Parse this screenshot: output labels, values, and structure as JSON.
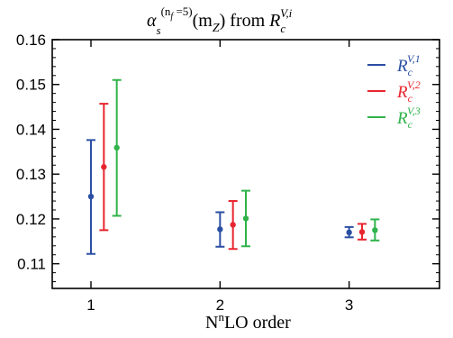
{
  "chart_data": {
    "type": "scatter",
    "title": {
      "symbol": "α",
      "sub": "s",
      "sup": "(n",
      "sup_sub": "f",
      "sup_tail": " =5)",
      "arg": "(m",
      "arg_sub": "Z",
      "arg_tail": ") from ",
      "R": "R",
      "R_sub": "c",
      "R_sup": "V,i"
    },
    "xlabel": {
      "N": "N",
      "n": "n",
      "rest": "LO order"
    },
    "ylabel": "",
    "x_ticks": [
      "1",
      "2",
      "3"
    ],
    "y_ticks": [
      "0.11",
      "0.12",
      "0.13",
      "0.14",
      "0.15",
      "0.16"
    ],
    "xlim": [
      0.7,
      3.7
    ],
    "ylim": [
      0.1045,
      0.16
    ],
    "grid": false,
    "legend_position": "top-right",
    "series": [
      {
        "name": "R_c^{V,1}",
        "legend": {
          "R": "R",
          "sub": "c",
          "sup": "V,1"
        },
        "color": "#2a4fa3",
        "offset": 0.0,
        "points": [
          {
            "x": 1,
            "y": 0.125,
            "ylow": 0.1122,
            "yhigh": 0.1376
          },
          {
            "x": 2,
            "y": 0.1177,
            "ylow": 0.1138,
            "yhigh": 0.1215
          },
          {
            "x": 3,
            "y": 0.117,
            "ylow": 0.1159,
            "yhigh": 0.1182
          }
        ]
      },
      {
        "name": "R_c^{V,2}",
        "legend": {
          "R": "R",
          "sub": "c",
          "sup": "V,2"
        },
        "color": "#e8252f",
        "offset": 0.1,
        "points": [
          {
            "x": 1,
            "y": 0.1316,
            "ylow": 0.1175,
            "yhigh": 0.1457
          },
          {
            "x": 2,
            "y": 0.1187,
            "ylow": 0.1133,
            "yhigh": 0.124
          },
          {
            "x": 3,
            "y": 0.1171,
            "ylow": 0.1154,
            "yhigh": 0.1189
          }
        ]
      },
      {
        "name": "R_c^{V,3}",
        "legend": {
          "R": "R",
          "sub": "c",
          "sup": "V,3"
        },
        "color": "#2fb34a",
        "offset": 0.2,
        "points": [
          {
            "x": 1,
            "y": 0.1359,
            "ylow": 0.1207,
            "yhigh": 0.151
          },
          {
            "x": 2,
            "y": 0.1201,
            "ylow": 0.1139,
            "yhigh": 0.1263
          },
          {
            "x": 3,
            "y": 0.1175,
            "ylow": 0.1152,
            "yhigh": 0.1199
          }
        ]
      }
    ]
  }
}
